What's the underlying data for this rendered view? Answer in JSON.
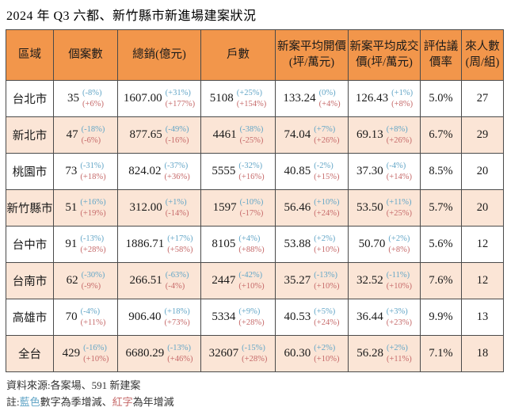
{
  "title": "2024 年 Q3 六都、新竹縣市新進場建案狀況",
  "colors": {
    "header_bg": "#F2964B",
    "alt_row_bg": "#FBE5D6",
    "qoq_blue": "#63A6C7",
    "yoy_red": "#C66A6A",
    "border": "#4a4a4a"
  },
  "chart_data": {
    "type": "table",
    "title": "2024 年 Q3 六都、新竹縣市新進場建案狀況",
    "columns": [
      "區域",
      "個案數",
      "總銷(億元)",
      "戶數",
      "新案平均開價(坪/萬元)",
      "新案平均成交價(坪/萬元)",
      "評估議價率",
      "來人數(周/組)"
    ],
    "legend": {
      "blue": "季增減 (QoQ)",
      "red": "年增減 (YoY)"
    },
    "rows": [
      {
        "region": "台北市",
        "cases": {
          "v": "35",
          "q": "(-8%)",
          "y": "(+6%)"
        },
        "sales": {
          "v": "1607.00",
          "q": "(+31%)",
          "y": "(+177%)"
        },
        "units": {
          "v": "5108",
          "q": "(+25%)",
          "y": "(+154%)"
        },
        "ask": {
          "v": "133.24",
          "q": "(0%)",
          "y": "(+4%)"
        },
        "deal": {
          "v": "126.43",
          "q": "(+1%)",
          "y": "(+8%)"
        },
        "rate": "5.0%",
        "visitors": "27"
      },
      {
        "region": "新北市",
        "cases": {
          "v": "47",
          "q": "(-18%)",
          "y": "(-6%)"
        },
        "sales": {
          "v": "877.65",
          "q": "(-49%)",
          "y": "(-16%)"
        },
        "units": {
          "v": "4461",
          "q": "(-38%)",
          "y": "(-25%)"
        },
        "ask": {
          "v": "74.04",
          "q": "(+7%)",
          "y": "(+26%)"
        },
        "deal": {
          "v": "69.13",
          "q": "(+8%)",
          "y": "(+26%)"
        },
        "rate": "6.7%",
        "visitors": "29"
      },
      {
        "region": "桃園市",
        "cases": {
          "v": "73",
          "q": "(-31%)",
          "y": "(+18%)"
        },
        "sales": {
          "v": "824.02",
          "q": "(-37%)",
          "y": "(+36%)"
        },
        "units": {
          "v": "5555",
          "q": "(-32%)",
          "y": "(+16%)"
        },
        "ask": {
          "v": "40.85",
          "q": "(-2%)",
          "y": "(+15%)"
        },
        "deal": {
          "v": "37.30",
          "q": "(-4%)",
          "y": "(+14%)"
        },
        "rate": "8.5%",
        "visitors": "20"
      },
      {
        "region": "新竹縣市",
        "cases": {
          "v": "51",
          "q": "(+16%)",
          "y": "(+19%)"
        },
        "sales": {
          "v": "312.00",
          "q": "(+1%)",
          "y": "(-14%)"
        },
        "units": {
          "v": "1597",
          "q": "(-10%)",
          "y": "(-17%)"
        },
        "ask": {
          "v": "56.46",
          "q": "(+10%)",
          "y": "(+24%)"
        },
        "deal": {
          "v": "53.50",
          "q": "(+11%)",
          "y": "(+25%)"
        },
        "rate": "5.7%",
        "visitors": "20"
      },
      {
        "region": "台中市",
        "cases": {
          "v": "91",
          "q": "(-13%)",
          "y": "(+28%)"
        },
        "sales": {
          "v": "1886.71",
          "q": "(+17%)",
          "y": "(+58%)"
        },
        "units": {
          "v": "8105",
          "q": "(+4%)",
          "y": "(+88%)"
        },
        "ask": {
          "v": "53.88",
          "q": "(+2%)",
          "y": "(+10%)"
        },
        "deal": {
          "v": "50.70",
          "q": "(+2%)",
          "y": "(+8%)"
        },
        "rate": "5.6%",
        "visitors": "12"
      },
      {
        "region": "台南市",
        "cases": {
          "v": "62",
          "q": "(-30%)",
          "y": "(-9%)"
        },
        "sales": {
          "v": "266.51",
          "q": "(-63%)",
          "y": "(-4%)"
        },
        "units": {
          "v": "2447",
          "q": "(-42%)",
          "y": "(+10%)"
        },
        "ask": {
          "v": "35.27",
          "q": "(-13%)",
          "y": "(+10%)"
        },
        "deal": {
          "v": "32.52",
          "q": "(-11%)",
          "y": "(+10%)"
        },
        "rate": "7.6%",
        "visitors": "12"
      },
      {
        "region": "高雄市",
        "cases": {
          "v": "70",
          "q": "(-4%)",
          "y": "(+11%)"
        },
        "sales": {
          "v": "906.40",
          "q": "(+18%)",
          "y": "(+73%)"
        },
        "units": {
          "v": "5334",
          "q": "(+9%)",
          "y": "(+28%)"
        },
        "ask": {
          "v": "40.53",
          "q": "(+5%)",
          "y": "(+24%)"
        },
        "deal": {
          "v": "36.44",
          "q": "(+3%)",
          "y": "(+23%)"
        },
        "rate": "9.9%",
        "visitors": "13"
      },
      {
        "region": "全台",
        "cases": {
          "v": "429",
          "q": "(-16%)",
          "y": "(+10%)"
        },
        "sales": {
          "v": "6680.29",
          "q": "(-13%)",
          "y": "(+46%)"
        },
        "units": {
          "v": "32607",
          "q": "(-15%)",
          "y": "(+28%)"
        },
        "ask": {
          "v": "60.30",
          "q": "(+2%)",
          "y": "(+10%)"
        },
        "deal": {
          "v": "56.28",
          "q": "(+2%)",
          "y": "(+11%)"
        },
        "rate": "7.1%",
        "visitors": "18"
      }
    ]
  },
  "footer": {
    "source": "資料來源:各案場、591 新建案",
    "note_prefix": "註:",
    "note_blue": "藍色",
    "note_mid": "數字為季增減、",
    "note_red": "紅字",
    "note_suffix": "為年增減"
  }
}
